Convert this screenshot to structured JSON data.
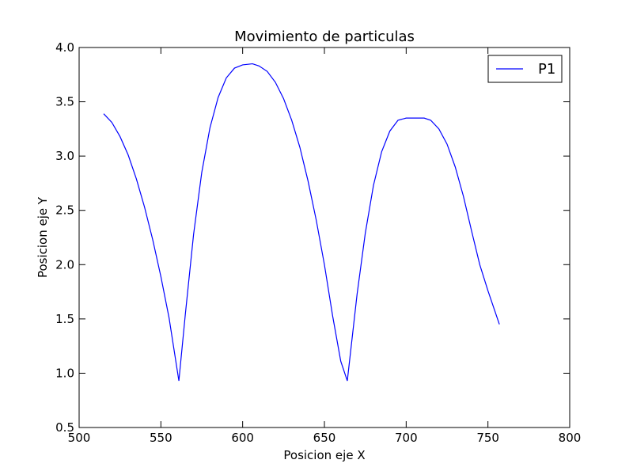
{
  "chart_data": {
    "type": "line",
    "title": "Movimiento de particulas",
    "xlabel": "Posicion eje X",
    "ylabel": "Posicion eje Y",
    "xlim": [
      500,
      800
    ],
    "ylim": [
      0.5,
      4.0
    ],
    "xticks": [
      500,
      550,
      600,
      650,
      700,
      750,
      800
    ],
    "yticks": [
      0.5,
      1.0,
      1.5,
      2.0,
      2.5,
      3.0,
      3.5,
      4.0
    ],
    "xtick_labels": [
      "500",
      "550",
      "600",
      "650",
      "700",
      "750",
      "800"
    ],
    "ytick_labels": [
      "0.5",
      "1.0",
      "1.5",
      "2.0",
      "2.5",
      "3.0",
      "3.5",
      "4.0"
    ],
    "grid": false,
    "legend_position": "top-right",
    "series": [
      {
        "name": "P1",
        "color": "#0000ff",
        "x": [
          515,
          520,
          525,
          530,
          535,
          540,
          545,
          550,
          555,
          561,
          565,
          570,
          575,
          580,
          585,
          590,
          595,
          600,
          606,
          610,
          615,
          620,
          625,
          630,
          635,
          640,
          645,
          650,
          655,
          660,
          664,
          670,
          675,
          680,
          685,
          690,
          695,
          700,
          705,
          711,
          715,
          720,
          725,
          730,
          735,
          740,
          745,
          750,
          757
        ],
        "y": [
          3.39,
          3.31,
          3.18,
          3.01,
          2.79,
          2.53,
          2.23,
          1.89,
          1.51,
          0.93,
          1.55,
          2.28,
          2.85,
          3.26,
          3.54,
          3.72,
          3.81,
          3.84,
          3.85,
          3.83,
          3.78,
          3.68,
          3.53,
          3.33,
          3.08,
          2.77,
          2.41,
          2.0,
          1.53,
          1.11,
          0.93,
          1.73,
          2.29,
          2.73,
          3.04,
          3.23,
          3.33,
          3.35,
          3.35,
          3.35,
          3.33,
          3.25,
          3.11,
          2.9,
          2.63,
          2.31,
          2.0,
          1.76,
          1.45
        ]
      }
    ]
  }
}
